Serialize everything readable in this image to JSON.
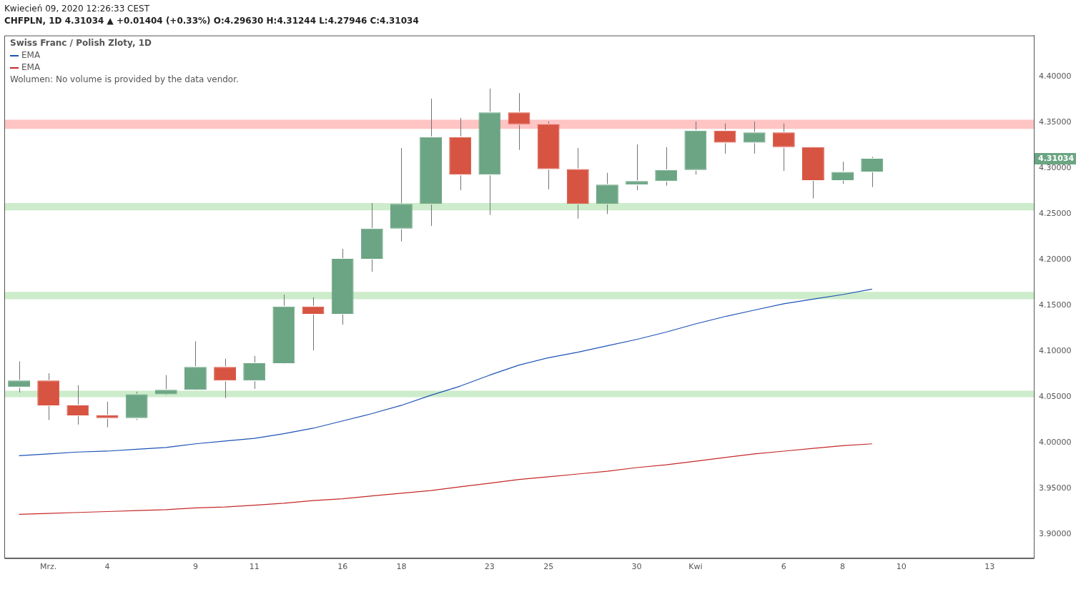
{
  "chart_data": {
    "type": "candlestick",
    "title": "Swiss Franc / Polish Zloty, 1D",
    "subtitle": "CHFPLN, 1D 4.31034 ▲ +0.01404 (+0.33%) O:4.29630 H:4.31244 L:4.27946 C:4.31034",
    "annotations": [
      "Kwiecień 09, 2020 12:26:33 CEST",
      "Wolumen: No volume is provided by the data vendor.",
      "4.31034"
    ],
    "categories": [
      null,
      "Mrz.",
      null,
      "4",
      null,
      null,
      "9",
      null,
      "11",
      null,
      null,
      "16",
      null,
      "18",
      null,
      null,
      "23",
      null,
      "25",
      null,
      null,
      "30",
      null,
      "Kwi",
      null,
      null,
      "6",
      null,
      "8",
      null,
      "10",
      null,
      null,
      "13",
      null
    ],
    "ohlc": [
      [
        4.061,
        4.089,
        4.055,
        4.068
      ],
      [
        4.068,
        4.076,
        4.025,
        4.041
      ],
      [
        4.041,
        4.063,
        4.02,
        4.03
      ],
      [
        4.03,
        4.045,
        4.017,
        4.027
      ],
      [
        4.027,
        4.056,
        4.025,
        4.053
      ],
      [
        4.053,
        4.074,
        4.053,
        4.058
      ],
      [
        4.058,
        4.111,
        4.057,
        4.083
      ],
      [
        4.083,
        4.092,
        4.049,
        4.068
      ],
      [
        4.068,
        4.095,
        4.059,
        4.087
      ],
      [
        4.087,
        4.162,
        4.086,
        4.149
      ],
      [
        4.149,
        4.159,
        4.101,
        4.141
      ],
      [
        4.141,
        4.212,
        4.129,
        4.201
      ],
      [
        4.201,
        4.262,
        4.187,
        4.234
      ],
      [
        4.234,
        4.322,
        4.22,
        4.261
      ],
      [
        4.261,
        4.376,
        4.237,
        4.334
      ],
      [
        4.334,
        4.355,
        4.276,
        4.293
      ],
      [
        4.293,
        4.387,
        4.249,
        4.361
      ],
      [
        4.361,
        4.382,
        4.32,
        4.348
      ],
      [
        4.348,
        4.351,
        4.277,
        4.299
      ],
      [
        4.299,
        4.322,
        4.245,
        4.261
      ],
      [
        4.261,
        4.295,
        4.25,
        4.282
      ],
      [
        4.282,
        4.326,
        4.276,
        4.286
      ],
      [
        4.286,
        4.323,
        4.281,
        4.298
      ],
      [
        4.298,
        4.351,
        4.293,
        4.341
      ],
      [
        4.341,
        4.349,
        4.316,
        4.328
      ],
      [
        4.328,
        4.351,
        4.316,
        4.339
      ],
      [
        4.339,
        4.349,
        4.297,
        4.323
      ],
      [
        4.323,
        4.324,
        4.267,
        4.287
      ],
      [
        4.287,
        4.307,
        4.283,
        4.296
      ],
      [
        4.2963,
        4.31244,
        4.27946,
        4.31034
      ],
      null,
      null,
      null,
      null,
      null
    ],
    "colors": [
      "#6ba583",
      "#d75442",
      "#d75442",
      "#d75442",
      "#6ba583",
      "#6ba583",
      "#6ba583",
      "#d75442",
      "#6ba583",
      "#6ba583",
      "#d75442",
      "#6ba583",
      "#6ba583",
      "#6ba583",
      "#6ba583",
      "#d75442",
      "#6ba583",
      "#d75442",
      "#d75442",
      "#d75442",
      "#6ba583",
      "#6ba583",
      "#6ba583",
      "#6ba583",
      "#d75442",
      "#6ba583",
      "#d75442",
      "#d75442",
      "#6ba583",
      "#6ba583",
      null,
      null,
      null,
      null,
      null
    ],
    "series": [
      {
        "name": "EMA",
        "type": "line",
        "color": "#1e53b5",
        "values": [
          3.986,
          3.988,
          3.99,
          3.991,
          3.993,
          3.995,
          3.999,
          4.002,
          4.005,
          4.01,
          4.016,
          4.024,
          4.032,
          4.041,
          4.052,
          4.062,
          4.074,
          4.085,
          4.093,
          4.099,
          4.106,
          4.113,
          4.121,
          4.13,
          4.138,
          4.145,
          4.152,
          4.157,
          4.162,
          4.168,
          null,
          null,
          null,
          null,
          null
        ]
      },
      {
        "name": "EMA",
        "type": "line",
        "color": "#c62828",
        "values": [
          3.922,
          3.923,
          3.924,
          3.925,
          3.926,
          3.927,
          3.929,
          3.93,
          3.932,
          3.934,
          3.937,
          3.939,
          3.942,
          3.945,
          3.948,
          3.952,
          3.956,
          3.96,
          3.963,
          3.966,
          3.969,
          3.973,
          3.976,
          3.98,
          3.984,
          3.988,
          3.991,
          3.994,
          3.997,
          3.999,
          null,
          null,
          null,
          null,
          null
        ]
      }
    ],
    "ylim": [
      3.874,
      4.445
    ],
    "yticks": [
      {
        "value": 3.9,
        "label": "3.90000"
      },
      {
        "value": 3.95,
        "label": "3.95000"
      },
      {
        "value": 4.0,
        "label": "4.00000"
      },
      {
        "value": 4.05,
        "label": "4.05000"
      },
      {
        "value": 4.1,
        "label": "4.10000"
      },
      {
        "value": 4.15,
        "label": "4.15000"
      },
      {
        "value": 4.2,
        "label": "4.20000"
      },
      {
        "value": 4.25,
        "label": "4.25000"
      },
      {
        "value": 4.3,
        "label": "4.30000"
      },
      {
        "value": 4.35,
        "label": "4.35000"
      },
      {
        "value": 4.4,
        "label": "4.40000"
      }
    ],
    "bands": [
      {
        "axis": "y",
        "from": 4.343,
        "to": 4.353,
        "color": "#ffc4c4"
      },
      {
        "axis": "y",
        "from": 4.254,
        "to": 4.262,
        "color": "#cdeccb"
      },
      {
        "axis": "y",
        "from": 4.157,
        "to": 4.165,
        "color": "#cdeccb"
      },
      {
        "axis": "y",
        "from": 4.05,
        "to": 4.057,
        "color": "#cdeccb"
      }
    ],
    "legend": "top left",
    "marker": "none"
  }
}
